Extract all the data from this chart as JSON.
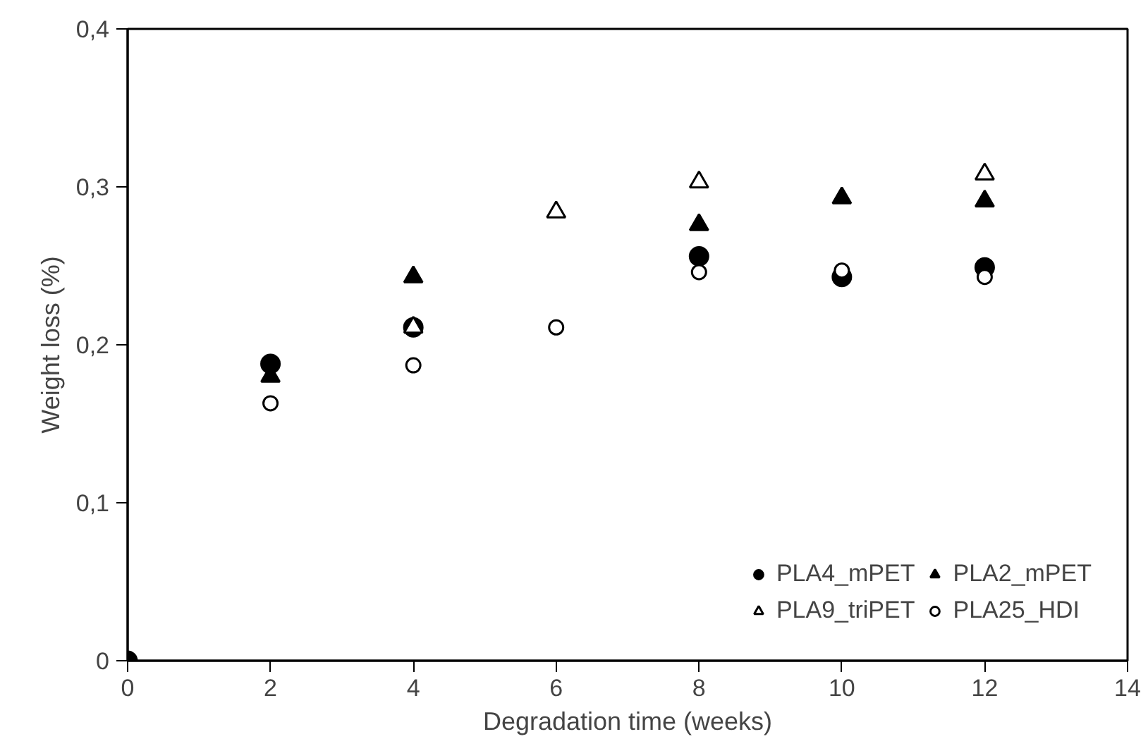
{
  "chart_data": {
    "type": "scatter",
    "xlabel": "Degradation time (weeks)",
    "ylabel": "Weight loss (%)",
    "x": [
      0,
      2,
      4,
      6,
      8,
      10,
      12
    ],
    "series": [
      {
        "name": "PLA4_mPET",
        "color": "#000000",
        "marker": "circle",
        "values": [
          0,
          0.188,
          0.211,
          null,
          0.256,
          0.243,
          0.249
        ]
      },
      {
        "name": "PLA2_mPET",
        "color": "#000000",
        "marker": "triangle",
        "values": [
          null,
          0.18,
          0.243,
          null,
          0.276,
          0.293,
          0.291
        ]
      },
      {
        "name": "PLA9_triPET",
        "color": "#ffffff",
        "marker": "triangle",
        "values": [
          null,
          null,
          0.211,
          0.284,
          0.303,
          null,
          0.308
        ]
      },
      {
        "name": "PLA25_HDI",
        "color": "#ffffff",
        "marker": "circle",
        "values": [
          null,
          0.163,
          0.187,
          0.211,
          0.246,
          0.247,
          0.243
        ]
      }
    ],
    "xlim": [
      0,
      14
    ],
    "xticks": [
      0,
      2,
      4,
      6,
      8,
      10,
      12,
      14
    ],
    "ylim": [
      0,
      0.4
    ],
    "yticks": [
      0,
      {
        "value": 0.1,
        "label": "0,1"
      },
      {
        "value": 0.2,
        "label": "0,2"
      },
      {
        "value": 0.3,
        "label": "0,3"
      },
      {
        "value": 0.4,
        "label": "0,4"
      }
    ],
    "grid": false,
    "legend": "bottom right"
  }
}
